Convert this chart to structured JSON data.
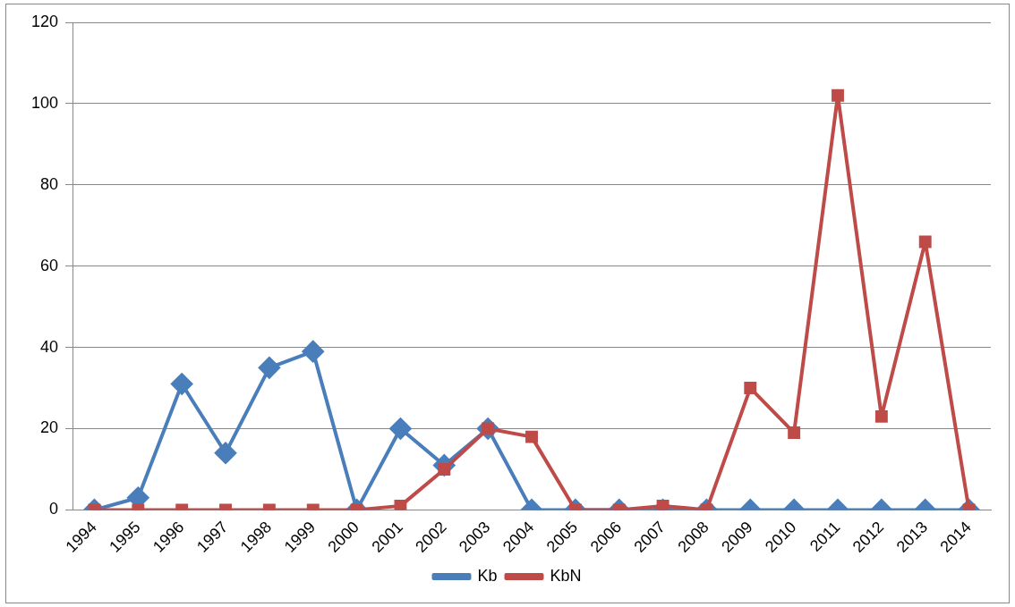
{
  "chart_data": {
    "type": "line",
    "categories": [
      "1994",
      "1995",
      "1996",
      "1997",
      "1998",
      "1999",
      "2000",
      "2001",
      "2002",
      "2003",
      "2004",
      "2005",
      "2006",
      "2007",
      "2008",
      "2009",
      "2010",
      "2011",
      "2012",
      "2013",
      "2014"
    ],
    "series": [
      {
        "name": "Kb",
        "color": "#4a7ebb",
        "marker": "diamond",
        "values": [
          0,
          3,
          31,
          14,
          35,
          39,
          0,
          20,
          11,
          20,
          0,
          0,
          0,
          0,
          0,
          0,
          0,
          0,
          0,
          0,
          0
        ]
      },
      {
        "name": "KbN",
        "color": "#be4b48",
        "marker": "square",
        "values": [
          0,
          0,
          0,
          0,
          0,
          0,
          0,
          1,
          10,
          20,
          18,
          0,
          0,
          1,
          0,
          30,
          19,
          102,
          23,
          66,
          0
        ]
      }
    ],
    "ylim": [
      0,
      120
    ],
    "yticks": [
      0,
      20,
      40,
      60,
      80,
      100,
      120
    ],
    "grid": "y",
    "legend": "bottom",
    "line_style": "solid"
  }
}
